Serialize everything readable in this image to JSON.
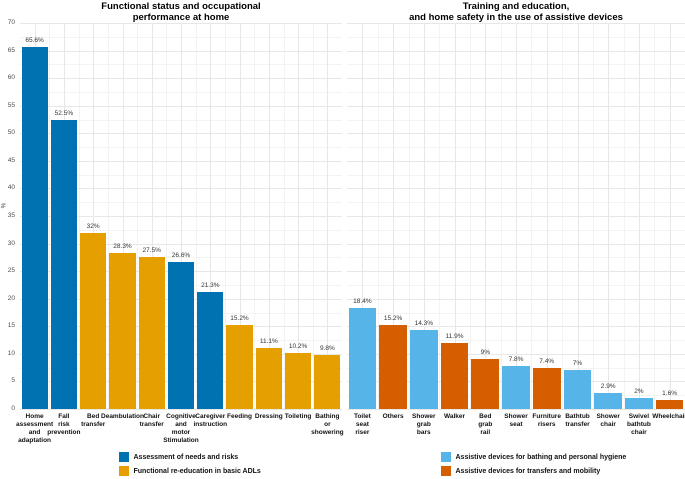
{
  "chart_data": [
    {
      "type": "bar",
      "title": "Functional status and occupational\nperformance at home",
      "ylabel": "%",
      "ylim": [
        0,
        70
      ],
      "ytick_step": 5,
      "grid": "major and minor, light gray on white",
      "legend_position": "bottom",
      "categories": [
        "Home\nassessment\nand\nadaptation",
        "Fall\nrisk\nprevention",
        "Bed\ntransfer",
        "Deambulation",
        "Chair\ntransfer",
        "Cognitive\nand\nmotor\nStimulation",
        "Caregiver\ninstruction",
        "Feeding",
        "Dressing",
        "Toileting",
        "Bathing\nor\nshowering"
      ],
      "values": [
        65.6,
        52.5,
        32,
        28.3,
        27.5,
        26.6,
        21.3,
        15.2,
        11.1,
        10.2,
        9.8
      ],
      "value_labels": [
        "65.6%",
        "52.5%",
        "32%",
        "28.3%",
        "27.5%",
        "26.6%",
        "21.3%",
        "15.2%",
        "11.1%",
        "10.2%",
        "9.8%"
      ],
      "bar_series": [
        "assessment",
        "assessment",
        "adl",
        "adl",
        "adl",
        "assessment",
        "assessment",
        "adl",
        "adl",
        "adl",
        "adl"
      ],
      "legend": [
        {
          "key": "assessment",
          "label": "Assessment of needs and risks",
          "color": "#0072B2"
        },
        {
          "key": "adl",
          "label": "Functional re-education in basic ADLs",
          "color": "#E69F00"
        }
      ]
    },
    {
      "type": "bar",
      "title": "Training and education,\nand home safety in the use of assistive devices",
      "ylabel": "",
      "ylim": [
        0,
        70
      ],
      "ytick_step": 5,
      "grid": "major and minor, light gray on white",
      "legend_position": "bottom",
      "categories": [
        "Toilet\nseat\nriser",
        "Others",
        "Shower\ngrab\nbars",
        "Walker",
        "Bed\ngrab\nrail",
        "Shower\nseat",
        "Furniture\nrisers",
        "Bathtub\ntransfer",
        "Shower\nchair",
        "Swivel\nbathtub\nchair",
        "Wheelchair"
      ],
      "values": [
        18.4,
        15.2,
        14.3,
        11.9,
        9,
        7.8,
        7.4,
        7,
        2.9,
        2,
        1.6
      ],
      "value_labels": [
        "18.4%",
        "15.2%",
        "14.3%",
        "11.9%",
        "9%",
        "7.8%",
        "7.4%",
        "7%",
        "2.9%",
        "2%",
        "1.6%"
      ],
      "bar_series": [
        "bathing",
        "transfers",
        "bathing",
        "transfers",
        "transfers",
        "bathing",
        "transfers",
        "bathing",
        "bathing",
        "bathing",
        "transfers"
      ],
      "legend": [
        {
          "key": "bathing",
          "label": "Assistive devices for bathing and personal hygiene",
          "color": "#56B4E9"
        },
        {
          "key": "transfers",
          "label": "Assistive devices for transfers and mobility",
          "color": "#D55E00"
        }
      ]
    }
  ]
}
